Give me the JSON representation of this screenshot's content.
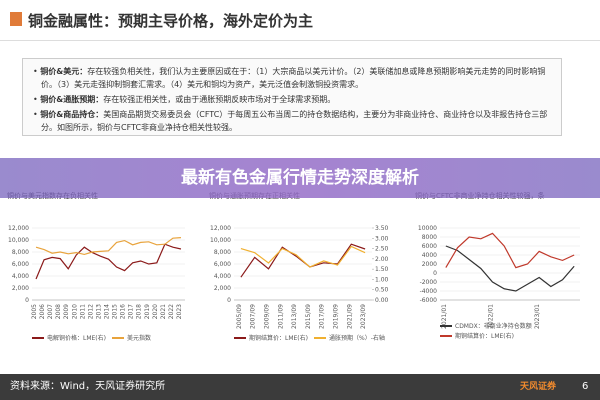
{
  "header": {
    "title": "铜金融属性：预期主导价格，海外定价为主"
  },
  "bullets": [
    {
      "label": "铜价&美元：",
      "text": "存在较强负相关性，我们认为主要原因或在于：（1）大宗商品以美元计价。（2）美联储加息或降息预期影响美元走势的同时影响铜价。（3）美元走强抑制铜套汇需求。（4）美元和铜均为资产，美元泛值会制激铜投资需求。"
    },
    {
      "label": "铜价&通胀预期：",
      "text": "存在较强正相关性，或由于通胀预期反映市场对于全球需求预期。"
    },
    {
      "label": "铜价&商品持仓：",
      "text": "美国商品期货交易委员会（CFTC）于每周五公布当周二的持仓数据结构，主要分为非商业持仓、商业持仓以及非报告持仓三部分。如图所示，铜价与CFTC非商业净持仓相关性较强。"
    }
  ],
  "banner": "最新有色金属行情走势深度解析",
  "chart_data": [
    {
      "type": "line",
      "title": "铜价与美元指数存在负相关性",
      "categories": [
        "2005",
        "2006",
        "2007",
        "2008",
        "2009",
        "2010",
        "2011",
        "2012",
        "2013",
        "2014",
        "2015",
        "2016",
        "2017",
        "2018",
        "2019",
        "2020",
        "2021",
        "2022",
        "2023"
      ],
      "series": [
        {
          "name": "电解铜价格：LME(右)",
          "color": "#8b1a1a",
          "values": [
            3500,
            6700,
            7100,
            6900,
            5200,
            7500,
            8800,
            7900,
            7300,
            6800,
            5500,
            4900,
            6200,
            6500,
            6000,
            6200,
            9300,
            8800,
            8500
          ]
        },
        {
          "name": "美元指数",
          "color": "#e8a33c",
          "axis": "y2",
          "values": [
            88,
            84,
            78,
            80,
            77,
            79,
            76,
            80,
            81,
            82,
            96,
            99,
            92,
            96,
            97,
            92,
            93,
            103,
            104
          ]
        }
      ],
      "ylim": [
        0,
        12000
      ],
      "yticks": [
        0,
        {
          "value": 2000,
          "label": "2,000"
        },
        {
          "value": 4000,
          "label": "4,000"
        },
        {
          "value": 6000,
          "label": "6,000"
        },
        {
          "value": 8000,
          "label": "8,000"
        },
        {
          "value": 10000,
          "label": "10,000"
        },
        {
          "value": 12000,
          "label": "12,000"
        }
      ],
      "y2lim": [
        0,
        120
      ]
    },
    {
      "type": "line",
      "title": "铜价与通胀预期存在正相关性",
      "categories": [
        "2005/09",
        "2007/09",
        "2009/09",
        "2011/09",
        "2013/09",
        "2015/09",
        "2017/09",
        "2019/09",
        "2021/09",
        "2023/09"
      ],
      "series": [
        {
          "name": "期铜结算价：LME(右)",
          "color": "#8b1a1a",
          "values": [
            3800,
            7100,
            5200,
            8800,
            7300,
            5500,
            6200,
            6000,
            9300,
            8500
          ]
        },
        {
          "name": "通胀预期（%）-右轴",
          "color": "#f0b030",
          "axis": "y2",
          "values": [
            2.5,
            2.3,
            1.8,
            2.5,
            2.2,
            1.6,
            1.9,
            1.7,
            2.6,
            2.3
          ]
        }
      ],
      "ylim": [
        0,
        12000
      ],
      "yticks": [
        0,
        {
          "value": 2000,
          "label": "2,000"
        },
        {
          "value": 4000,
          "label": "4,000"
        },
        {
          "value": 6000,
          "label": "6,000"
        },
        {
          "value": 8000,
          "label": "8,000"
        },
        {
          "value": 10000,
          "label": "10,000"
        },
        {
          "value": 12000,
          "label": "12,000"
        }
      ],
      "y2lim": [
        0,
        3.5
      ],
      "y2ticks": [
        {
          "value": 0,
          "label": "0.00"
        },
        {
          "value": 0.5,
          "label": "0.50"
        },
        {
          "value": 1,
          "label": "1.00"
        },
        {
          "value": 1.5,
          "label": "1.50"
        },
        {
          "value": 2,
          "label": "2.00"
        },
        {
          "value": 2.5,
          "label": "2.50"
        },
        {
          "value": 3,
          "label": "3.00"
        },
        {
          "value": 3.5,
          "label": "3.50"
        }
      ]
    },
    {
      "type": "line",
      "title": "铜价与CFTC非商业净持仓相关性较强，条",
      "categories": [
        "2021/01",
        null,
        null,
        null,
        "2022/01",
        null,
        null,
        null,
        "2023/01",
        null,
        null,
        null
      ],
      "series": [
        {
          "name": "CDMDX：非商业净持仓数额",
          "color": "#333333",
          "values": [
            6000,
            5000,
            3000,
            1000,
            -2000,
            -3500,
            -4000,
            -2500,
            -1000,
            -3000,
            -1500,
            1500
          ]
        },
        {
          "name": "期铜结算价：LME(右)",
          "color": "#c0392b",
          "axis": "y2",
          "values": [
            7800,
            8900,
            9500,
            9400,
            9700,
            9000,
            7800,
            8000,
            8700,
            8400,
            8200,
            8500
          ]
        }
      ],
      "ylim": [
        -6000,
        10000
      ],
      "yticks": [
        -6000,
        -4000,
        -2000,
        0,
        2000,
        4000,
        6000,
        8000,
        10000
      ],
      "y2lim": [
        6000,
        10000
      ]
    }
  ],
  "footer": {
    "source": "资料来源：Wind，天风证券研究所",
    "logo": "天风证券",
    "page": "6"
  }
}
